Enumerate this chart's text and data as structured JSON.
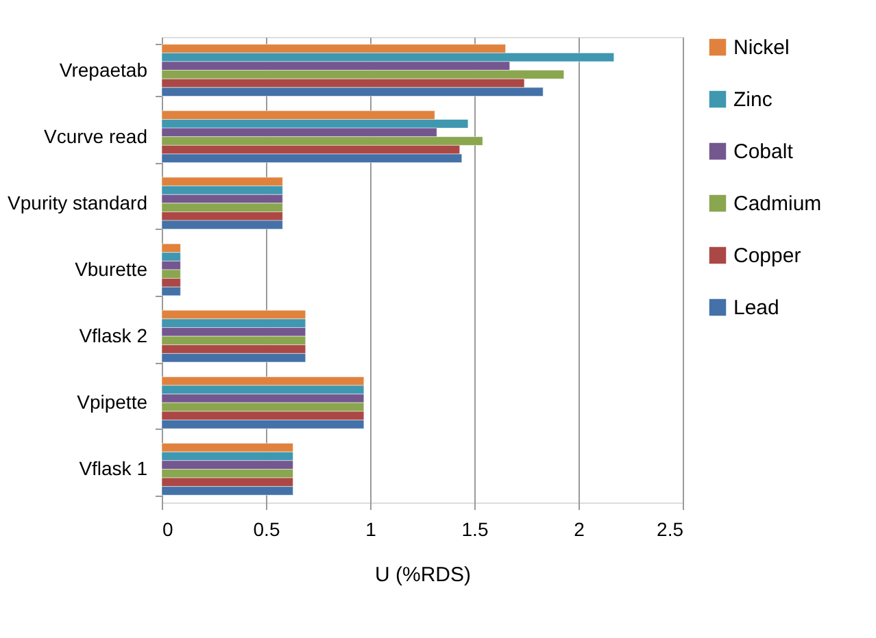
{
  "chart_data": {
    "type": "bar",
    "orientation": "horizontal",
    "xlabel": "U (%RDS)",
    "categories": [
      "Vrepaetab",
      "Vcurve read",
      "Vpurity standard",
      "Vburette",
      "Vflask 2",
      "Vpipette",
      "Vflask 1"
    ],
    "series": [
      {
        "name": "Nickel",
        "color": "#e0823d",
        "values": [
          1.65,
          1.31,
          0.58,
          0.09,
          0.69,
          0.97,
          0.63
        ]
      },
      {
        "name": "Zinc",
        "color": "#3f97b0",
        "values": [
          2.17,
          1.47,
          0.58,
          0.09,
          0.69,
          0.97,
          0.63
        ]
      },
      {
        "name": "Cobalt",
        "color": "#74578f",
        "values": [
          1.67,
          1.32,
          0.58,
          0.09,
          0.69,
          0.97,
          0.63
        ]
      },
      {
        "name": "Cadmium",
        "color": "#8aa64e",
        "values": [
          1.93,
          1.54,
          0.58,
          0.09,
          0.69,
          0.97,
          0.63
        ]
      },
      {
        "name": "Copper",
        "color": "#ab4845",
        "values": [
          1.74,
          1.43,
          0.58,
          0.09,
          0.69,
          0.97,
          0.63
        ]
      },
      {
        "name": "Lead",
        "color": "#4471a8",
        "values": [
          1.83,
          1.44,
          0.58,
          0.09,
          0.69,
          0.97,
          0.63
        ]
      }
    ],
    "xlim": [
      0,
      2.5
    ],
    "xticks": [
      0,
      0.5,
      1,
      1.5,
      2,
      2.5
    ],
    "grid": "x",
    "legend": "right"
  }
}
